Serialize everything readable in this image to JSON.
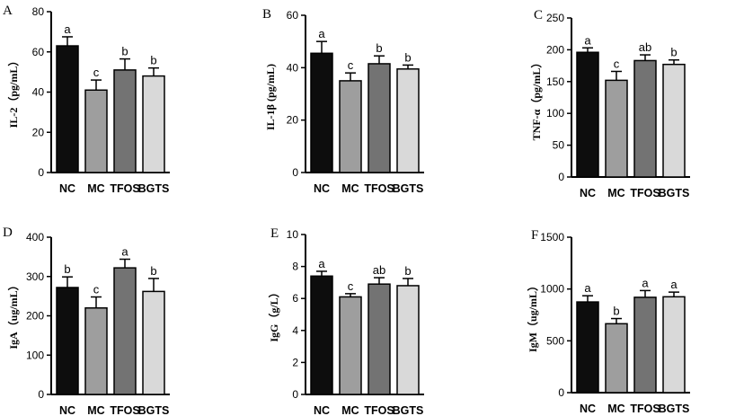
{
  "chart_data": [
    {
      "type": "bar",
      "panel": "A",
      "ylabel": "IL-2（pg/mL）",
      "categories": [
        "NC",
        "MC",
        "TFOS",
        "BGTS"
      ],
      "values": [
        63,
        41,
        51,
        48
      ],
      "errors": [
        4.5,
        5,
        5.5,
        4
      ],
      "significance": [
        "a",
        "c",
        "b",
        "b"
      ],
      "ylim": [
        0,
        80
      ],
      "yticks": [
        0,
        20,
        40,
        60,
        80
      ],
      "ytick_labels": [
        "0",
        "20",
        "40",
        "60",
        "80"
      ]
    },
    {
      "type": "bar",
      "panel": "B",
      "ylabel": "IL-1β (pg/mL)",
      "categories": [
        "NC",
        "MC",
        "TFOS",
        "BGTS"
      ],
      "values": [
        45.5,
        35,
        41.5,
        39.5
      ],
      "errors": [
        4.5,
        3,
        3,
        1.5
      ],
      "significance": [
        "a",
        "c",
        "b",
        "b"
      ],
      "ylim": [
        0,
        60
      ],
      "yticks": [
        0,
        20,
        40,
        60
      ],
      "ytick_labels": [
        "0",
        "20",
        "40",
        "60"
      ]
    },
    {
      "type": "bar",
      "panel": "C",
      "ylabel": "TNF-α（pg/mL）",
      "categories": [
        "NC",
        "MC",
        "TFOS",
        "BGTS"
      ],
      "values": [
        196,
        152,
        183,
        177
      ],
      "errors": [
        7,
        14,
        9,
        7
      ],
      "significance": [
        "a",
        "c",
        "ab",
        "b"
      ],
      "ylim": [
        0,
        250
      ],
      "yticks": [
        0,
        50,
        100,
        150,
        200,
        250
      ],
      "ytick_labels": [
        "0",
        "50",
        "100",
        "150",
        "200",
        "250"
      ]
    },
    {
      "type": "bar",
      "panel": "D",
      "ylabel": "IgA（ug/mL）",
      "categories": [
        "NC",
        "MC",
        "TFOS",
        "BGTS"
      ],
      "values": [
        272,
        220,
        322,
        262
      ],
      "errors": [
        27,
        28,
        22,
        33
      ],
      "significance": [
        "b",
        "c",
        "a",
        "b"
      ],
      "ylim": [
        0,
        400
      ],
      "yticks": [
        0,
        100,
        200,
        300,
        400
      ],
      "ytick_labels": [
        "0",
        "100",
        "200",
        "300",
        "400"
      ]
    },
    {
      "type": "bar",
      "panel": "E",
      "ylabel": "IgG（g/L）",
      "categories": [
        "NC",
        "MC",
        "TFOS",
        "BGTS"
      ],
      "values": [
        7.4,
        6.1,
        6.9,
        6.8
      ],
      "errors": [
        0.3,
        0.2,
        0.4,
        0.45
      ],
      "significance": [
        "a",
        "c",
        "ab",
        "b"
      ],
      "ylim": [
        0,
        10
      ],
      "yticks": [
        0,
        2,
        4,
        6,
        8,
        10
      ],
      "ytick_labels": [
        "0",
        "2",
        "4",
        "6",
        "8",
        "10"
      ]
    },
    {
      "type": "bar",
      "panel": "F",
      "ylabel": "IgM（ug/mL）",
      "categories": [
        "NC",
        "MC",
        "TFOS",
        "BGTS"
      ],
      "values": [
        875,
        665,
        920,
        925
      ],
      "errors": [
        60,
        50,
        65,
        45
      ],
      "significance": [
        "a",
        "b",
        "a",
        "a"
      ],
      "ylim": [
        0,
        1500
      ],
      "yticks": [
        0,
        500,
        1000,
        1500
      ],
      "ytick_labels": [
        "0",
        "500",
        "1000",
        "1500"
      ]
    }
  ],
  "style": {
    "bar_colors": [
      "#0d0d0d",
      "#9e9e9e",
      "#737373",
      "#d9d9d9"
    ]
  }
}
